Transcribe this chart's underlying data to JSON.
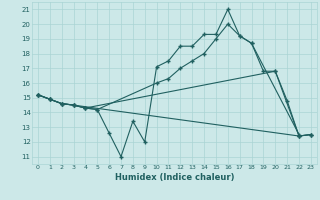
{
  "xlabel": "Humidex (Indice chaleur)",
  "bg_color": "#cce8e8",
  "grid_color": "#aad4d4",
  "line_color": "#206060",
  "xlim": [
    -0.5,
    23.5
  ],
  "ylim": [
    10.5,
    21.5
  ],
  "yticks": [
    11,
    12,
    13,
    14,
    15,
    16,
    17,
    18,
    19,
    20,
    21
  ],
  "xticks": [
    0,
    1,
    2,
    3,
    4,
    5,
    6,
    7,
    8,
    9,
    10,
    11,
    12,
    13,
    14,
    15,
    16,
    17,
    18,
    19,
    20,
    21,
    22,
    23
  ],
  "line1_x": [
    0,
    1,
    2,
    3,
    4,
    5,
    6,
    7,
    8,
    9,
    10,
    11,
    12,
    13,
    14,
    15,
    16,
    17,
    18,
    22
  ],
  "line1_y": [
    15.2,
    14.9,
    14.6,
    14.5,
    14.3,
    14.2,
    12.6,
    11.0,
    13.4,
    12.0,
    17.1,
    17.5,
    18.5,
    18.5,
    19.3,
    19.3,
    21.0,
    19.2,
    18.7,
    12.5
  ],
  "line2_x": [
    0,
    1,
    2,
    3,
    4,
    5,
    10,
    11,
    12,
    13,
    14,
    15,
    16,
    17,
    18,
    19,
    20,
    22,
    23
  ],
  "line2_y": [
    15.2,
    14.9,
    14.6,
    14.5,
    14.3,
    14.2,
    16.0,
    16.3,
    17.0,
    17.5,
    18.0,
    19.0,
    20.0,
    19.2,
    18.7,
    16.8,
    16.8,
    12.4,
    12.5
  ],
  "line3_x": [
    0,
    1,
    2,
    3,
    22,
    23
  ],
  "line3_y": [
    15.2,
    14.9,
    14.6,
    14.5,
    12.4,
    12.5
  ],
  "line4_x": [
    0,
    1,
    2,
    3,
    4,
    20,
    21,
    22,
    23
  ],
  "line4_y": [
    15.2,
    14.9,
    14.6,
    14.5,
    14.3,
    16.8,
    14.8,
    12.4,
    12.5
  ]
}
